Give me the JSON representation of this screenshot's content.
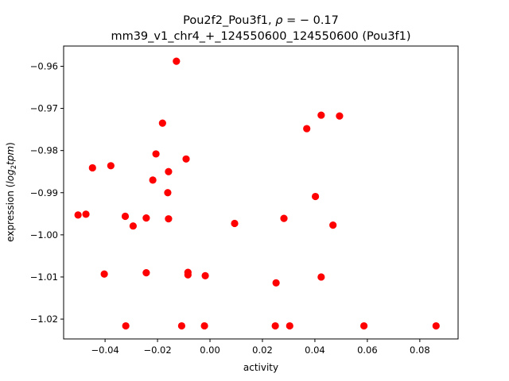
{
  "chart_data": {
    "type": "scatter",
    "title_line1": "Pou2f2_Pou3f1, ",
    "title_rho": "ρ",
    "title_rho_value": " = − 0.17",
    "title_line2": "mm39_v1_chr4_+_124550600_124550600 (Pou3f1)",
    "xlabel": "activity",
    "ylabel_prefix": "expression (",
    "ylabel_log": "log",
    "ylabel_sub": "2",
    "ylabel_tpm": "tpm",
    "ylabel_suffix": ")",
    "xlim": [
      -0.0558,
      0.0946
    ],
    "ylim": [
      -1.0247,
      -0.9552
    ],
    "xticks": [
      -0.04,
      -0.02,
      0.0,
      0.02,
      0.04,
      0.06,
      0.08
    ],
    "xtick_labels": [
      "−0.04",
      "−0.02",
      "0.00",
      "0.02",
      "0.04",
      "0.06",
      "0.08"
    ],
    "yticks": [
      -0.96,
      -0.97,
      -0.98,
      -0.99,
      -1.0,
      -1.01,
      -1.02
    ],
    "ytick_labels": [
      "−0.96",
      "−0.97",
      "−0.98",
      "−0.99",
      "−1.00",
      "−1.01",
      "−1.02"
    ],
    "marker_color": "#ff0000",
    "grid": false,
    "points": [
      {
        "x": -0.0503,
        "y": -0.9953
      },
      {
        "x": -0.0473,
        "y": -0.9951
      },
      {
        "x": -0.0448,
        "y": -0.9841
      },
      {
        "x": -0.0403,
        "y": -1.0093
      },
      {
        "x": -0.0378,
        "y": -0.9836
      },
      {
        "x": -0.0323,
        "y": -0.9956
      },
      {
        "x": -0.0321,
        "y": -1.0216
      },
      {
        "x": -0.0293,
        "y": -0.9979
      },
      {
        "x": -0.0243,
        "y": -0.996
      },
      {
        "x": -0.0243,
        "y": -1.009
      },
      {
        "x": -0.0218,
        "y": -0.987
      },
      {
        "x": -0.0206,
        "y": -0.9808
      },
      {
        "x": -0.0181,
        "y": -0.9735
      },
      {
        "x": -0.0161,
        "y": -0.99
      },
      {
        "x": -0.0158,
        "y": -0.985
      },
      {
        "x": -0.0158,
        "y": -0.9962
      },
      {
        "x": -0.0128,
        "y": -0.9588
      },
      {
        "x": -0.0108,
        "y": -1.0216
      },
      {
        "x": -0.0091,
        "y": -0.982
      },
      {
        "x": -0.0084,
        "y": -1.0089
      },
      {
        "x": -0.0084,
        "y": -1.0095
      },
      {
        "x": -0.0021,
        "y": -1.0216
      },
      {
        "x": -0.0018,
        "y": -1.0097
      },
      {
        "x": 0.0094,
        "y": -0.9973
      },
      {
        "x": 0.0249,
        "y": -1.0216
      },
      {
        "x": 0.0252,
        "y": -1.0114
      },
      {
        "x": 0.0282,
        "y": -0.9961
      },
      {
        "x": 0.0304,
        "y": -1.0216
      },
      {
        "x": 0.0369,
        "y": -0.9748
      },
      {
        "x": 0.0402,
        "y": -0.9909
      },
      {
        "x": 0.0424,
        "y": -0.9716
      },
      {
        "x": 0.0424,
        "y": -1.01
      },
      {
        "x": 0.0469,
        "y": -0.9977
      },
      {
        "x": 0.0494,
        "y": -0.9718
      },
      {
        "x": 0.0587,
        "y": -1.0216
      },
      {
        "x": 0.0862,
        "y": -1.0216
      }
    ]
  }
}
